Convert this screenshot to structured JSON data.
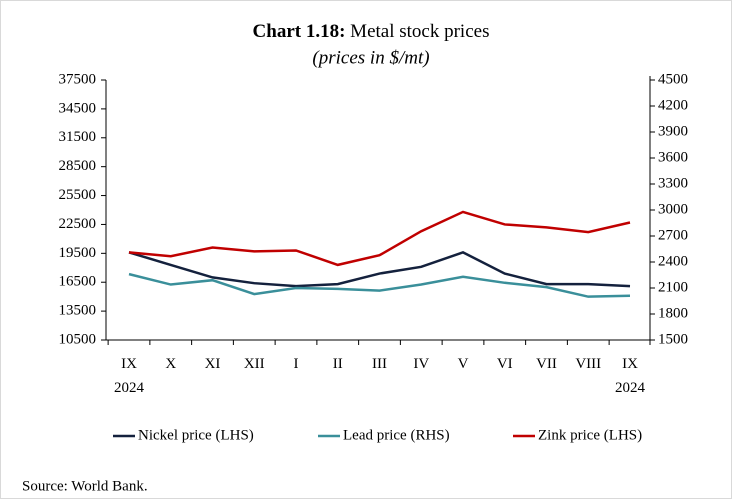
{
  "chart_data": {
    "type": "line",
    "title_number": "Chart 1.18:",
    "title": "Metal stock prices",
    "subtitle": "(prices in $/mt)",
    "categories": [
      "IX\n2024",
      "X",
      "XI",
      "XII",
      "I",
      "II",
      "III",
      "IV",
      "V",
      "VI",
      "VII",
      "VIII",
      "IX\n2024"
    ],
    "series": [
      {
        "name": "Nickel price (LHS)",
        "color": "#14213d",
        "axis": "y",
        "values": [
          19600,
          18300,
          17000,
          16400,
          16100,
          16300,
          17400,
          18100,
          19600,
          17400,
          16300,
          16300,
          16100
        ]
      },
      {
        "name": "Lead price (RHS)",
        "color": "#3a8f9a",
        "axis": "y2",
        "values": [
          2260,
          2140,
          2190,
          2030,
          2100,
          2090,
          2070,
          2140,
          2230,
          2160,
          2110,
          2000,
          2010
        ]
      },
      {
        "name": "Zink price (LHS)",
        "color": "#c00000",
        "axis": "y",
        "values": [
          19600,
          19200,
          20100,
          19700,
          19800,
          18300,
          19300,
          21800,
          23800,
          22500,
          22200,
          21700,
          22700
        ]
      }
    ],
    "ylim": [
      10500,
      37500
    ],
    "yticks": [
      10500,
      13500,
      16500,
      19500,
      22500,
      25500,
      28500,
      31500,
      34500,
      37500
    ],
    "y2lim": [
      1500,
      4500
    ],
    "y2ticks": [
      1500,
      1800,
      2100,
      2400,
      2700,
      3000,
      3300,
      3600,
      3900,
      4200,
      4500
    ],
    "legend": "bottom",
    "source": "Source: World Bank."
  }
}
